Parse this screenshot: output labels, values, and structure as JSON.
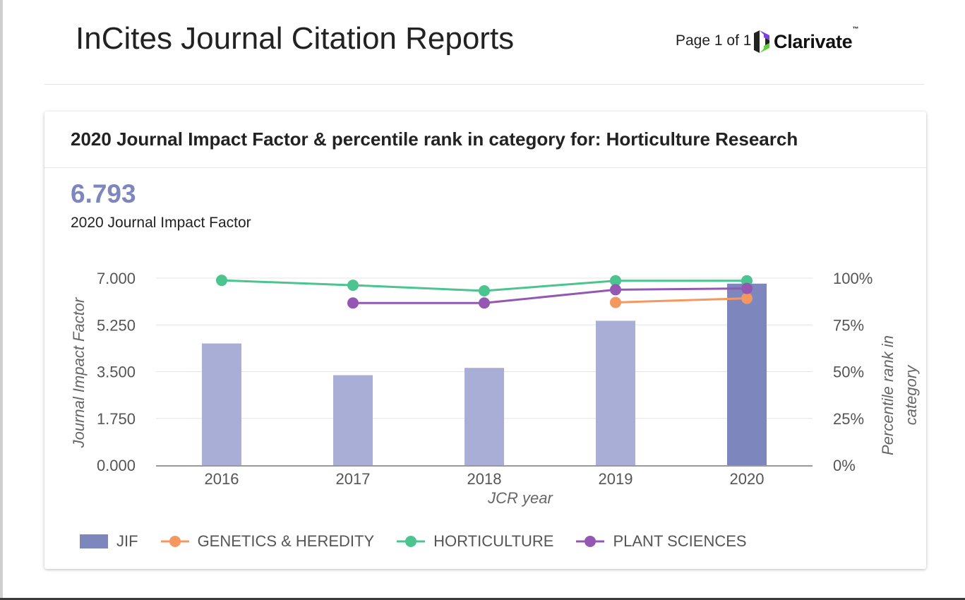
{
  "header": {
    "title": "InCites Journal Citation Reports",
    "page_count": "Page 1 of 1",
    "brand": "Clarivate",
    "brand_tm": "™"
  },
  "card": {
    "title": "2020 Journal Impact Factor & percentile rank in category for: Horticulture Research",
    "jif_value": "6.793",
    "jif_caption": "2020 Journal Impact Factor"
  },
  "chart_data": {
    "type": "bar",
    "categories": [
      "2016",
      "2017",
      "2018",
      "2019",
      "2020"
    ],
    "xlabel": "JCR year",
    "ylabel": "Journal Impact Factor",
    "y2label": "Percentile rank in category",
    "ylim": [
      0,
      7
    ],
    "y2lim": [
      0,
      100
    ],
    "yticks": [
      "0.000",
      "1.750",
      "3.500",
      "5.250",
      "7.000"
    ],
    "y2ticks": [
      "0%",
      "25%",
      "50%",
      "75%",
      "100%"
    ],
    "grid": true,
    "legend_position": "bottom",
    "series": [
      {
        "name": "JIF",
        "kind": "bar",
        "axis": "left",
        "values": [
          4.554,
          3.368,
          3.64,
          5.404,
          6.793
        ],
        "color": "#a9aed6",
        "highlight_color": "#7d87bd",
        "highlight_index": 4
      },
      {
        "name": "GENETICS & HEREDITY",
        "kind": "line",
        "axis": "right",
        "values": [
          null,
          null,
          null,
          87.0,
          89.2
        ],
        "color": "#f4985f"
      },
      {
        "name": "HORTICULTURE",
        "kind": "line",
        "axis": "right",
        "values": [
          98.8,
          96.2,
          93.2,
          98.6,
          98.6
        ],
        "color": "#4cc48f"
      },
      {
        "name": "PLANT SCIENCES",
        "kind": "line",
        "axis": "right",
        "values": [
          null,
          86.7,
          86.7,
          93.8,
          94.5
        ],
        "color": "#9458b4"
      }
    ]
  }
}
